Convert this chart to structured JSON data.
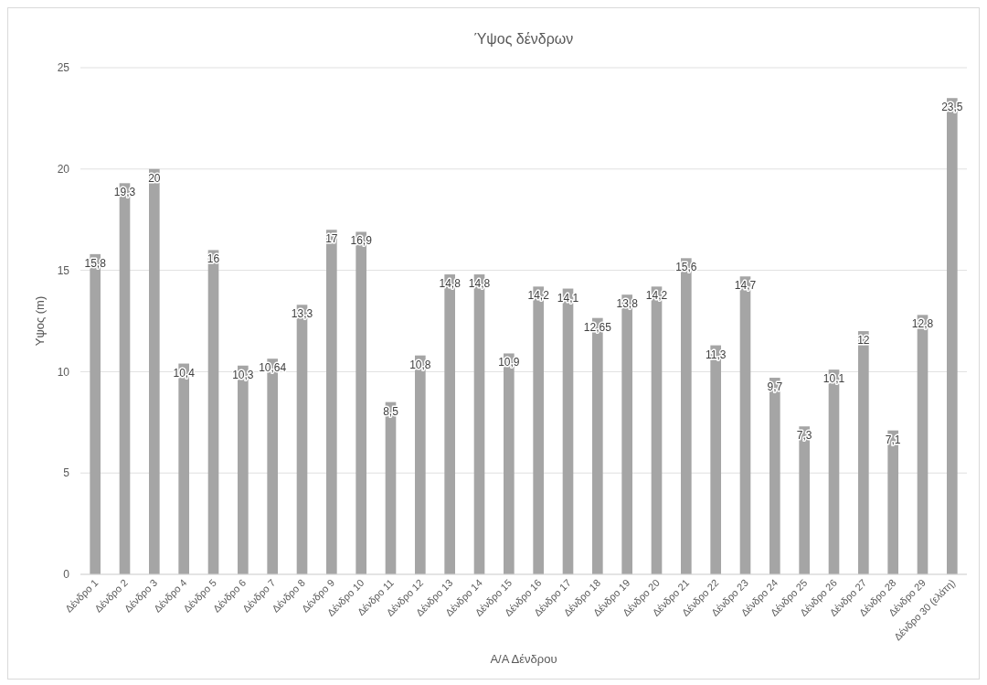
{
  "chart_data": {
    "type": "bar",
    "title": "Ύψος δένδρων",
    "xlabel": "Α/Α Δένδρου",
    "ylabel": "Υψος (m)",
    "categories": [
      "Δένδρο 1",
      "Δένδρο 2",
      "Δένδρο 3",
      "Δένδρο 4",
      "Δένδρο 5",
      "Δένδρο 6",
      "Δένδρο 7",
      "Δένδρο 8",
      "Δένδρο 9",
      "Δένδρο 10",
      "Δένδρο 11",
      "Δένδρο 12",
      "Δένδρο 13",
      "Δένδρο 14",
      "Δένδρο 15",
      "Δένδρο 16",
      "Δένδρο 17",
      "Δένδρο 18",
      "Δένδρο 19",
      "Δένδρο 20",
      "Δένδρο 21",
      "Δένδρο 22",
      "Δένδρο 23",
      "Δένδρο 24",
      "Δένδρο 25",
      "Δένδρο 26",
      "Δένδρο 27",
      "Δένδρο 28",
      "Δένδρο 29",
      "Δένδρο 30 (ελάτη)"
    ],
    "values": [
      15.8,
      19.3,
      20,
      10.4,
      16,
      10.3,
      10.64,
      13.3,
      17,
      16.9,
      8.5,
      10.8,
      14.8,
      14.8,
      10.9,
      14.2,
      14.1,
      12.65,
      13.8,
      14.2,
      15.6,
      11.3,
      14.7,
      9.7,
      7.3,
      10.1,
      12,
      7.1,
      12.8,
      23.5
    ],
    "value_labels": [
      "15,8",
      "19,3",
      "20",
      "10,4",
      "16",
      "10,3",
      "10,64",
      "13,3",
      "17",
      "16,9",
      "8,5",
      "10,8",
      "14,8",
      "14,8",
      "10,9",
      "14,2",
      "14,1",
      "12,65",
      "13,8",
      "14,2",
      "15,6",
      "11,3",
      "14,7",
      "9,7",
      "7,3",
      "10,1",
      "12",
      "7,1",
      "12,8",
      "23,5"
    ],
    "color": "#a5a5a5",
    "ylim": [
      0,
      25
    ],
    "yticks": [
      0,
      5,
      10,
      15,
      20,
      25
    ],
    "grid": "y"
  }
}
